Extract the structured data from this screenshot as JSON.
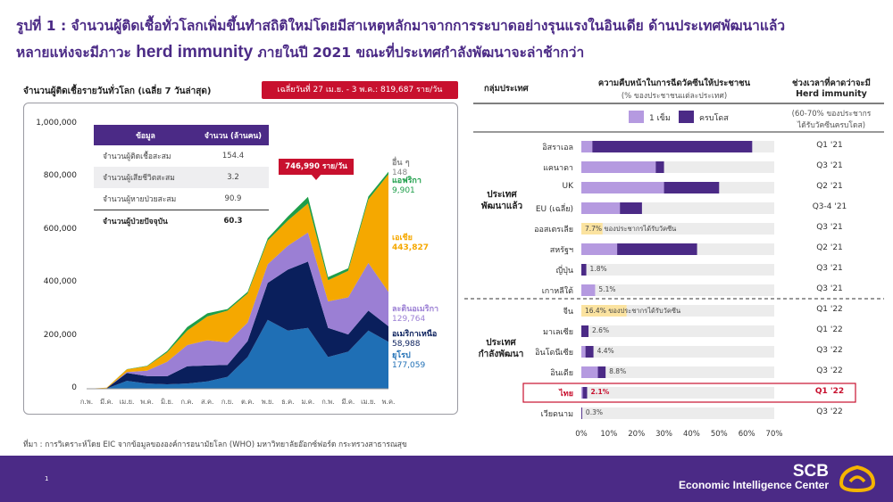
{
  "title": {
    "line1": "รูปที่ 1 : จำนวนผู้ติดเชื้อทั่วโลกเพิ่มขึ้นทำสถิติใหม่โดยมีสาเหตุหลักมาจากการระบาดอย่างรุนแรงในอินเดีย ด้านประเทศพัฒนาแล้ว",
    "line2_pre": "หลายแห่งจะมีภาวะ ",
    "line2_bold": "herd immunity",
    "line2_post": " ภายในปี 2021 ขณะที่ประเทศกำลังพัฒนาจะล่าช้ากว่า"
  },
  "left_chart": {
    "title": "จำนวนผู้ติดเชื้อรายวันทั่วโลก  (เฉลี่ย 7 วันล่าสุด)",
    "note": "เฉลี่ยวันที่ 27 เม.ย. - 3 พ.ค.: 819,687 ราย/วัน",
    "peak_label": "746,990 ราย/วัน",
    "table": {
      "headers": [
        "ข้อมูล",
        "จำนวน (ล้านคน)"
      ],
      "rows": [
        {
          "label": "จำนวนผู้ติดเชื้อสะสม",
          "value": "154.4"
        },
        {
          "label": "จำนวนผู้เสียชีวิตสะสม",
          "value": "3.2"
        },
        {
          "label": "จำนวนผู้หายป่วยสะสม",
          "value": "90.9"
        },
        {
          "label": "จำนวนผู้ป่วยปัจจุบัน",
          "value": "60.3"
        }
      ]
    },
    "region_labels": [
      {
        "name": "อื่น ๆ",
        "value": "148",
        "color": "#888888"
      },
      {
        "name": "แอฟริกา",
        "value": "9,901",
        "color": "#1e9e4a"
      },
      {
        "name": "เอเชีย",
        "value": "443,827",
        "color": "#f5a800"
      },
      {
        "name": "ละตินอเมริกา",
        "value": "129,764",
        "color": "#9b7fd4"
      },
      {
        "name": "อเมริกาเหนือ",
        "value": "58,988",
        "color": "#0a1f5c"
      },
      {
        "name": "ยุโรป",
        "value": "177,059",
        "color": "#1f6fb5"
      }
    ]
  },
  "chart_data": [
    {
      "type": "area",
      "title": "จำนวนผู้ติดเชื้อรายวันทั่วโลก  (เฉลี่ย 7 วันล่าสุด)",
      "x": [
        "ก.พ.",
        "มี.ค.",
        "เม.ย.",
        "พ.ค.",
        "มิ.ย.",
        "ก.ค.",
        "ส.ค.",
        "ก.ย.",
        "ต.ค.",
        "พ.ย.",
        "ธ.ค.",
        "ม.ค.",
        "ก.พ.",
        "มี.ค.",
        "เม.ย.",
        "พ.ค."
      ],
      "ylim": [
        0,
        1000000
      ],
      "yticks": [
        0,
        200000,
        400000,
        600000,
        800000,
        1000000
      ],
      "ytick_labels": [
        "0",
        "200,000",
        "400,000",
        "600,000",
        "800,000",
        "1,000,000"
      ],
      "series": [
        {
          "name": "ยุโรป",
          "color": "#1f6fb5",
          "values": [
            0,
            1000,
            30000,
            20000,
            17000,
            20000,
            28000,
            45000,
            120000,
            260000,
            220000,
            230000,
            120000,
            140000,
            220000,
            177059
          ]
        },
        {
          "name": "อเมริกาเหนือ",
          "color": "#0a1f5c",
          "values": [
            0,
            1000,
            30000,
            28000,
            30000,
            65000,
            60000,
            45000,
            60000,
            140000,
            230000,
            250000,
            110000,
            65000,
            75000,
            58988
          ]
        },
        {
          "name": "ละตินอเมริกา",
          "color": "#9b7fd4",
          "values": [
            0,
            0,
            3000,
            20000,
            55000,
            80000,
            95000,
            85000,
            70000,
            70000,
            90000,
            110000,
            100000,
            140000,
            180000,
            129764
          ]
        },
        {
          "name": "เอเชีย",
          "color": "#f5a800",
          "values": [
            0,
            2000,
            10000,
            17000,
            35000,
            55000,
            90000,
            120000,
            110000,
            90000,
            95000,
            110000,
            80000,
            100000,
            240000,
            443827
          ]
        },
        {
          "name": "แอฟริกา",
          "color": "#1e9e4a",
          "values": [
            0,
            0,
            1000,
            2000,
            5000,
            13000,
            12000,
            6000,
            6000,
            8000,
            15000,
            25000,
            12000,
            10000,
            11000,
            9901
          ]
        },
        {
          "name": "อื่น ๆ",
          "color": "#888888",
          "values": [
            0,
            0,
            0,
            0,
            0,
            0,
            0,
            0,
            0,
            0,
            0,
            0,
            0,
            0,
            0,
            148
          ]
        }
      ]
    },
    {
      "type": "bar",
      "title": "ความคืบหน้าในการฉีดวัคซีนให้ประชาชน",
      "xlabel": "(% ของประชาชนแต่ละประเทศ)",
      "xlim": [
        0,
        70
      ],
      "xtick_labels": [
        "0%",
        "10%",
        "20%",
        "30%",
        "40%",
        "50%",
        "60%",
        "70%"
      ],
      "legend": [
        "1 เข็ม",
        "ครบโดส"
      ],
      "categories": [
        "อิสราเอล",
        "แคนาดา",
        "UK",
        "EU (เฉลี่ย)",
        "ออสเตรเลีย",
        "สหรัฐฯ",
        "ญี่ปุ่น",
        "เกาหลีใต้",
        "จีน",
        "มาเลเซีย",
        "อินโดนีเซีย",
        "อินเดีย",
        "ไทย",
        "เวียดนาม"
      ],
      "series": [
        {
          "name": "1 เข็ม",
          "color": "#b59ae0",
          "values": [
            4,
            27,
            30,
            14,
            0,
            13,
            0,
            5,
            0,
            0,
            1.5,
            6,
            0.5,
            0
          ]
        },
        {
          "name": "ครบโดส",
          "color": "#4b2a86",
          "values": [
            58,
            3,
            20,
            8,
            0,
            29,
            1.8,
            0,
            0,
            2.6,
            2.9,
            2.8,
            1.6,
            0.3
          ]
        }
      ]
    }
  ],
  "right_chart": {
    "col_group": "กลุ่มประเทศ",
    "col_progress": "ความคืบหน้าในการฉีดวัคซีนให้ประชาชน",
    "col_progress_sub": "(% ของประชาชนแต่ละประเทศ)",
    "col_herd1": "ช่วงเวลาที่คาดว่าจะมี",
    "col_herd2": "Herd immunity",
    "col_herd_sub1": "(60-70% ของประชากร",
    "col_herd_sub2": "ได้รับวัคซีนครบโดส)",
    "legend_one": "1 เข็ม",
    "legend_full": "ครบโดส",
    "group_dev1": "ประเทศ",
    "group_dev2": "พัฒนาแล้ว",
    "group_deving1": "ประเทศ",
    "group_deving2": "กำลังพัฒนา",
    "highlight_color": "#c8102e",
    "rows": [
      {
        "country": "อิสราเอล",
        "quarter": "Q1 '21",
        "label": ""
      },
      {
        "country": "แคนาดา",
        "quarter": "Q3 '21",
        "label": ""
      },
      {
        "country": "UK",
        "quarter": "Q2 '21",
        "label": ""
      },
      {
        "country": "EU (เฉลี่ย)",
        "quarter": "Q3-4 '21",
        "label": ""
      },
      {
        "country": "ออสเตรเลีย",
        "quarter": "Q3 '21",
        "label": "7.7% ของประชากรได้รับวัคซีน",
        "single_pct": 7.7
      },
      {
        "country": "สหรัฐฯ",
        "quarter": "Q2 '21",
        "label": ""
      },
      {
        "country": "ญี่ปุ่น",
        "quarter": "Q3 '21",
        "label": "1.8%"
      },
      {
        "country": "เกาหลีใต้",
        "quarter": "Q3 '21",
        "label": "5.1%"
      },
      {
        "country": "จีน",
        "quarter": "Q1 '22",
        "label": "16.4% ของประชากรได้รับวัคซีน",
        "single_pct": 16.4
      },
      {
        "country": "มาเลเซีย",
        "quarter": "Q1 '22",
        "label": "2.6%"
      },
      {
        "country": "อินโดนีเซีย",
        "quarter": "Q3 '22",
        "label": "4.4%"
      },
      {
        "country": "อินเดีย",
        "quarter": "Q3 '22",
        "label": "8.8%"
      },
      {
        "country": "ไทย",
        "quarter": "Q1 '22",
        "label": "2.1%",
        "highlight": true
      },
      {
        "country": "เวียดนาม",
        "quarter": "Q3 '22",
        "label": "0.3%"
      }
    ]
  },
  "footer": {
    "source": "ที่มา : การวิเคราะห์โดย EIC จากข้อมูลขององค์การอนามัยโลก (WHO) มหาวิทยาลัยอ๊อกซ์ฟอร์ด กระทรวงสาธารณสุข",
    "brand": "SCB",
    "brand_sub": "Economic Intelligence Center",
    "page": "1",
    "brand_color": "#4b2a86"
  }
}
